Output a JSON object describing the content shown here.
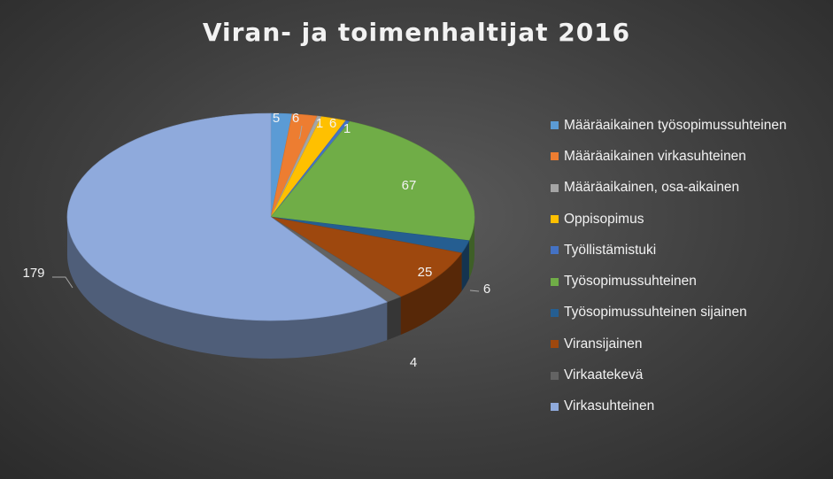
{
  "chart_data": {
    "type": "pie",
    "title": "Viran- ja toimenhaltijat 2016",
    "legend_position": "right",
    "categories": [
      "Määräaikainen työsopimussuhteinen",
      "Määräaikainen virkasuhteinen",
      "Määräaikainen, osa-aikainen",
      "Oppisopimus",
      "Työllistämistuki",
      "Työsopimussuhteinen",
      "Työsopimussuhteinen sijainen",
      "Viransijainen",
      "Virkaatekevä",
      "Virkasuhteinen"
    ],
    "values": [
      5,
      6,
      1,
      6,
      1,
      67,
      6,
      25,
      4,
      179
    ],
    "value_labels": [
      "5",
      "6",
      "1",
      "6",
      "1",
      "67",
      "6",
      "25",
      "4",
      "179"
    ],
    "colors": [
      "#5b9bd5",
      "#ed7d31",
      "#a5a5a5",
      "#ffc000",
      "#4472c4",
      "#70ad47",
      "#255e91",
      "#9e480e",
      "#636363",
      "#8faadc"
    ]
  }
}
